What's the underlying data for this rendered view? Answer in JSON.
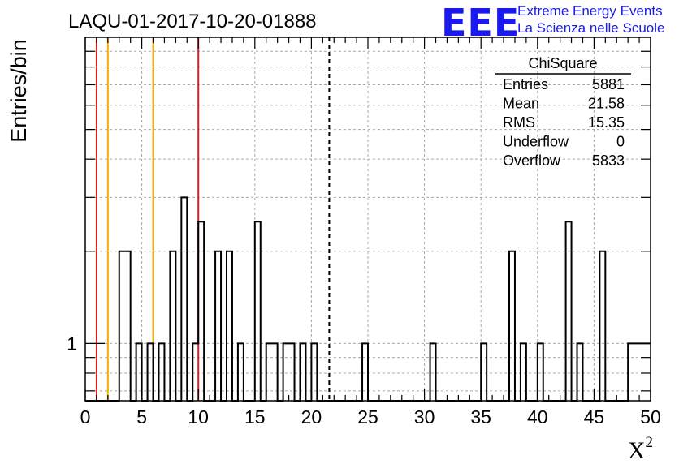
{
  "chart_data": {
    "type": "bar",
    "histogram": "step",
    "title": "LAQU-01-2017-10-20-01888",
    "xlabel": "X",
    "xlabel_superscript": "2",
    "ylabel": "Entries/bin",
    "xlim": [
      0,
      50
    ],
    "y_scale": "log",
    "ylim": [
      0.65,
      10
    ],
    "x_ticks": [
      0,
      5,
      10,
      15,
      20,
      25,
      30,
      35,
      40,
      45,
      50
    ],
    "x_tick_labels": [
      "0",
      "5",
      "10",
      "15",
      "20",
      "25",
      "30",
      "35",
      "40",
      "45",
      "50"
    ],
    "y_tick_labels": [
      {
        "value": 1,
        "label": "1"
      }
    ],
    "grid": true,
    "bin_width": 0.5,
    "bins": [
      [
        3.0,
        2
      ],
      [
        3.5,
        2
      ],
      [
        4.5,
        1
      ],
      [
        5.5,
        1
      ],
      [
        6.5,
        1
      ],
      [
        7.5,
        2
      ],
      [
        8.5,
        3
      ],
      [
        9.5,
        1
      ],
      [
        10.0,
        2.5
      ],
      [
        11.5,
        2
      ],
      [
        12.5,
        2
      ],
      [
        13.5,
        1
      ],
      [
        15.0,
        2.5
      ],
      [
        16.0,
        1
      ],
      [
        16.5,
        1
      ],
      [
        17.5,
        1
      ],
      [
        18.0,
        1
      ],
      [
        19.0,
        1
      ],
      [
        20.0,
        1
      ],
      [
        24.5,
        1
      ],
      [
        30.5,
        1
      ],
      [
        35.0,
        1
      ],
      [
        37.5,
        2
      ],
      [
        38.5,
        1
      ],
      [
        40.0,
        1
      ],
      [
        42.5,
        2.5
      ],
      [
        43.5,
        1
      ],
      [
        45.5,
        2
      ],
      [
        48.0,
        1
      ],
      [
        48.5,
        1
      ],
      [
        49.0,
        1
      ],
      [
        49.5,
        1
      ]
    ],
    "vertical_lines": [
      {
        "x": 1.0,
        "color": "#dd2020",
        "style": "solid"
      },
      {
        "x": 2.0,
        "color": "#f0b000",
        "style": "solid"
      },
      {
        "x": 6.0,
        "color": "#f0b000",
        "style": "solid"
      },
      {
        "x": 10.0,
        "color": "#dd2020",
        "style": "solid"
      },
      {
        "x": 21.58,
        "color": "#000000",
        "style": "dashed"
      }
    ],
    "stats_box": {
      "title": "ChiSquare",
      "rows": [
        {
          "label": "Entries",
          "value": "5881"
        },
        {
          "label": "Mean",
          "value": "21.58"
        },
        {
          "label": "RMS",
          "value": "15.35"
        },
        {
          "label": "Underflow",
          "value": "0"
        },
        {
          "label": "Overflow",
          "value": "5833"
        }
      ]
    }
  },
  "logo": {
    "mark": "EEE",
    "line1": "Extreme Energy Events",
    "line2": "La Scienza nelle Scuole"
  }
}
